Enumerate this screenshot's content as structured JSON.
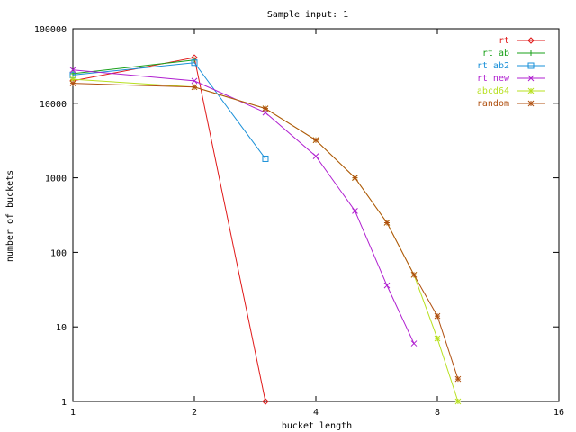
{
  "chart_data": {
    "type": "line",
    "title": "Sample input: 1",
    "xlabel": "bucket length",
    "ylabel": "number of buckets",
    "x_scale": "log2",
    "y_scale": "log10",
    "xlim": [
      1,
      16
    ],
    "ylim": [
      1,
      100000
    ],
    "x_ticks": [
      1,
      2,
      4,
      8,
      16
    ],
    "x_tick_labels": [
      "1",
      "2",
      "4",
      "8",
      "16"
    ],
    "y_ticks": [
      1,
      10,
      100,
      1000,
      10000,
      100000
    ],
    "y_tick_labels": [
      "1",
      "10",
      "100",
      "1000",
      "10000",
      "100000"
    ],
    "legend_position": "top-right",
    "series": [
      {
        "name": "rt",
        "color": "#e01818",
        "marker": "diamond",
        "points": [
          [
            1,
            20000
          ],
          [
            2,
            41000
          ],
          [
            3,
            1
          ]
        ]
      },
      {
        "name": "rt ab",
        "color": "#1aa01a",
        "marker": "plus",
        "points": [
          [
            1,
            25000
          ],
          [
            2,
            38000
          ]
        ]
      },
      {
        "name": "rt ab2",
        "color": "#1a90d8",
        "marker": "square",
        "points": [
          [
            1,
            24000
          ],
          [
            2,
            35000
          ],
          [
            3,
            1800
          ]
        ]
      },
      {
        "name": "rt new",
        "color": "#b020d0",
        "marker": "cross",
        "points": [
          [
            1,
            28000
          ],
          [
            2,
            20000
          ],
          [
            3,
            7500
          ],
          [
            4,
            1950
          ],
          [
            5,
            360
          ],
          [
            6,
            36
          ],
          [
            7,
            6
          ]
        ]
      },
      {
        "name": "abcd64",
        "color": "#b8e020",
        "marker": "star",
        "points": [
          [
            1,
            21000
          ],
          [
            2,
            16500
          ],
          [
            3,
            8500
          ],
          [
            4,
            3200
          ],
          [
            5,
            1000
          ],
          [
            6,
            250
          ],
          [
            7,
            50
          ],
          [
            8,
            7
          ],
          [
            9,
            1
          ]
        ]
      },
      {
        "name": "random",
        "color": "#b05010",
        "marker": "star",
        "points": [
          [
            1,
            18500
          ],
          [
            2,
            16500
          ],
          [
            3,
            8500
          ],
          [
            4,
            3200
          ],
          [
            5,
            1000
          ],
          [
            6,
            250
          ],
          [
            7,
            50
          ],
          [
            8,
            14
          ],
          [
            9,
            2
          ]
        ]
      }
    ]
  }
}
